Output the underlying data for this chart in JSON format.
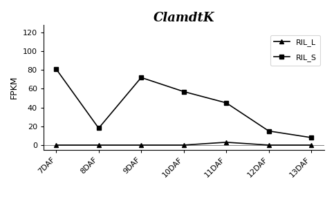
{
  "title": "ClamdtK",
  "xlabel": "",
  "ylabel": "FPKM",
  "x_labels": [
    "7DAF",
    "8DAF",
    "9DAF",
    "10DAF",
    "11DAF",
    "12DAF",
    "13DAF"
  ],
  "RIL_L": [
    0,
    0,
    0,
    0,
    3,
    0,
    0
  ],
  "RIL_S": [
    81,
    18,
    72,
    57,
    45,
    15,
    8
  ],
  "ylim": [
    -5,
    128
  ],
  "yticks": [
    0,
    20,
    40,
    60,
    80,
    100,
    120
  ],
  "line_color": "#000000",
  "marker_triangle": "^",
  "marker_square": "s",
  "marker_size": 5,
  "legend_labels": [
    "RIL_L",
    "RIL_S"
  ],
  "title_fontsize": 13,
  "axis_fontsize": 9,
  "tick_fontsize": 8,
  "legend_fontsize": 8,
  "linewidth": 1.2
}
